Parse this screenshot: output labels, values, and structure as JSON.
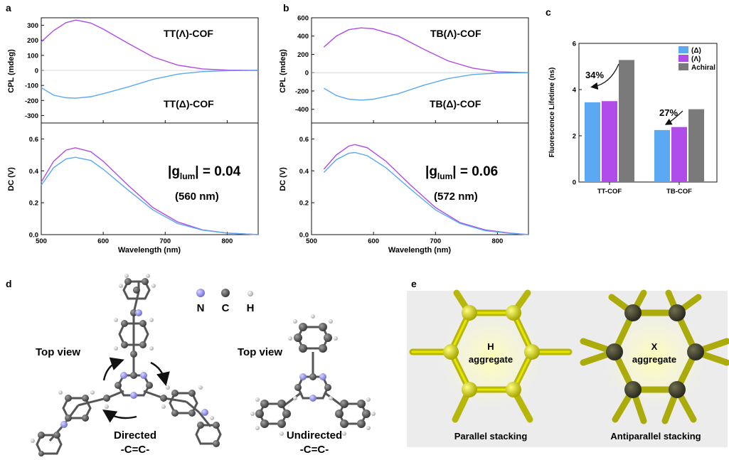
{
  "panels": {
    "a": "a",
    "b": "b",
    "c": "c",
    "d": "d",
    "e": "e"
  },
  "panel_a": {
    "cpl_ylabel": "CPL (mdeg)",
    "dc_ylabel": "DC (V)",
    "xlabel": "Wavelength (nm)",
    "cpl_yticks": [
      "300",
      "200",
      "100",
      "0",
      "-100",
      "-200",
      "-300"
    ],
    "dc_yticks": [
      "0.6",
      "0.4",
      "0.2",
      "0.0"
    ],
    "xticks": [
      "500",
      "600",
      "700",
      "800"
    ],
    "label_top": "TT(Λ)-COF",
    "label_bottom": "TT(Δ)-COF",
    "g_prefix": "|g",
    "g_sub": "lum",
    "g_suffix": "| = 0.04",
    "wavelength": "(560 nm)"
  },
  "panel_b": {
    "cpl_ylabel": "CPL (mdeg)",
    "dc_ylabel": "DC (V)",
    "xlabel": "Wavelength (nm)",
    "cpl_yticks": [
      "600",
      "400",
      "200",
      "0",
      "-200",
      "-400"
    ],
    "dc_yticks": [
      "0.6",
      "0.4",
      "0.2",
      "0.0"
    ],
    "xticks": [
      "500",
      "600",
      "700",
      "800"
    ],
    "label_top": "TB(Λ)-COF",
    "label_bottom": "TB(Δ)-COF",
    "g_prefix": "|g",
    "g_sub": "lum",
    "g_suffix": "| = 0.06",
    "wavelength": "(572 nm)"
  },
  "panel_c": {
    "ylabel": "Fluorescence Lifetime (ns)",
    "yticks": [
      "6",
      "4",
      "2",
      "0"
    ],
    "pct_tt": "34%",
    "pct_tb": "27%"
  },
  "panel_d": {
    "elements": [
      "N",
      "C",
      "H"
    ],
    "top_view_left": "Top view",
    "top_view_right": "Top view",
    "directed_line1": "Directed",
    "directed_line2": "-C=C-",
    "undirected_line1": "Undirected",
    "undirected_line2": "-C=C-"
  },
  "panel_e": {
    "left_line1": "H",
    "left_line2": "aggregate",
    "right_line1": "X",
    "right_line2": "aggregate",
    "left_caption": "Parallel stacking",
    "right_caption": "Antiparallel stacking"
  },
  "colors": {
    "delta": "#5aa9f2",
    "lambda": "#b04ce9",
    "achiral": "#7a7a7a",
    "sticks": "#c8c800"
  },
  "chart_data": [
    {
      "type": "line",
      "panel": "a-top",
      "xlabel": "",
      "ylabel": "CPL (mdeg)",
      "xlim": [
        500,
        850
      ],
      "ylim": [
        -350,
        350
      ],
      "series": [
        {
          "name": "TT(Λ)-COF",
          "x": [
            500,
            520,
            540,
            556,
            580,
            600,
            640,
            680,
            720,
            760,
            800,
            850
          ],
          "values": [
            190,
            265,
            318,
            335,
            315,
            275,
            180,
            90,
            35,
            10,
            2,
            0
          ]
        },
        {
          "name": "TT(Δ)-COF",
          "x": [
            500,
            520,
            540,
            556,
            580,
            600,
            640,
            680,
            720,
            760,
            800,
            850
          ],
          "values": [
            -115,
            -165,
            -182,
            -185,
            -175,
            -155,
            -110,
            -60,
            -25,
            -8,
            -2,
            0
          ]
        }
      ]
    },
    {
      "type": "line",
      "panel": "a-bottom",
      "xlabel": "Wavelength (nm)",
      "ylabel": "DC (V)",
      "xlim": [
        500,
        850
      ],
      "ylim": [
        0,
        0.7
      ],
      "series": [
        {
          "name": "Λ",
          "x": [
            500,
            520,
            540,
            555,
            580,
            600,
            640,
            680,
            720,
            760,
            800,
            850
          ],
          "values": [
            0.33,
            0.46,
            0.53,
            0.545,
            0.52,
            0.46,
            0.31,
            0.17,
            0.08,
            0.03,
            0.01,
            0.0
          ]
        },
        {
          "name": "Δ",
          "x": [
            500,
            520,
            540,
            555,
            580,
            600,
            640,
            680,
            720,
            760,
            800,
            850
          ],
          "values": [
            0.31,
            0.42,
            0.475,
            0.485,
            0.465,
            0.41,
            0.28,
            0.155,
            0.07,
            0.028,
            0.01,
            0.0
          ]
        }
      ]
    },
    {
      "type": "line",
      "panel": "b-top",
      "xlabel": "",
      "ylabel": "CPL (mdeg)",
      "xlim": [
        500,
        850
      ],
      "ylim": [
        -550,
        600
      ],
      "series": [
        {
          "name": "TB(Λ)-COF",
          "x": [
            520,
            540,
            560,
            580,
            600,
            640,
            680,
            720,
            760,
            800,
            850
          ],
          "values": [
            280,
            400,
            470,
            490,
            480,
            400,
            260,
            130,
            50,
            10,
            0
          ]
        },
        {
          "name": "TB(Δ)-COF",
          "x": [
            520,
            540,
            560,
            580,
            600,
            640,
            680,
            720,
            760,
            800,
            850
          ],
          "values": [
            -170,
            -250,
            -290,
            -300,
            -290,
            -230,
            -140,
            -65,
            -20,
            -5,
            0
          ]
        }
      ]
    },
    {
      "type": "line",
      "panel": "b-bottom",
      "xlabel": "Wavelength (nm)",
      "ylabel": "DC (V)",
      "xlim": [
        500,
        850
      ],
      "ylim": [
        0,
        0.7
      ],
      "series": [
        {
          "name": "Λ",
          "x": [
            520,
            540,
            560,
            570,
            590,
            620,
            660,
            700,
            740,
            780,
            820,
            850
          ],
          "values": [
            0.41,
            0.5,
            0.555,
            0.565,
            0.545,
            0.46,
            0.31,
            0.17,
            0.075,
            0.03,
            0.01,
            0.0
          ]
        },
        {
          "name": "Δ",
          "x": [
            520,
            540,
            560,
            570,
            590,
            620,
            660,
            700,
            740,
            780,
            820,
            850
          ],
          "values": [
            0.39,
            0.47,
            0.51,
            0.515,
            0.495,
            0.42,
            0.285,
            0.155,
            0.07,
            0.025,
            0.008,
            0.0
          ]
        }
      ]
    },
    {
      "type": "bar",
      "panel": "c",
      "ylabel": "Fluorescence Lifetime (ns)",
      "ylim": [
        0,
        6
      ],
      "categories": [
        "TT-COF",
        "TB-COF"
      ],
      "series": [
        {
          "name": "(Δ)",
          "values": [
            3.45,
            2.25
          ]
        },
        {
          "name": "(Λ)",
          "values": [
            3.5,
            2.38
          ]
        },
        {
          "name": "Achiral",
          "values": [
            5.28,
            3.15
          ]
        }
      ]
    }
  ]
}
